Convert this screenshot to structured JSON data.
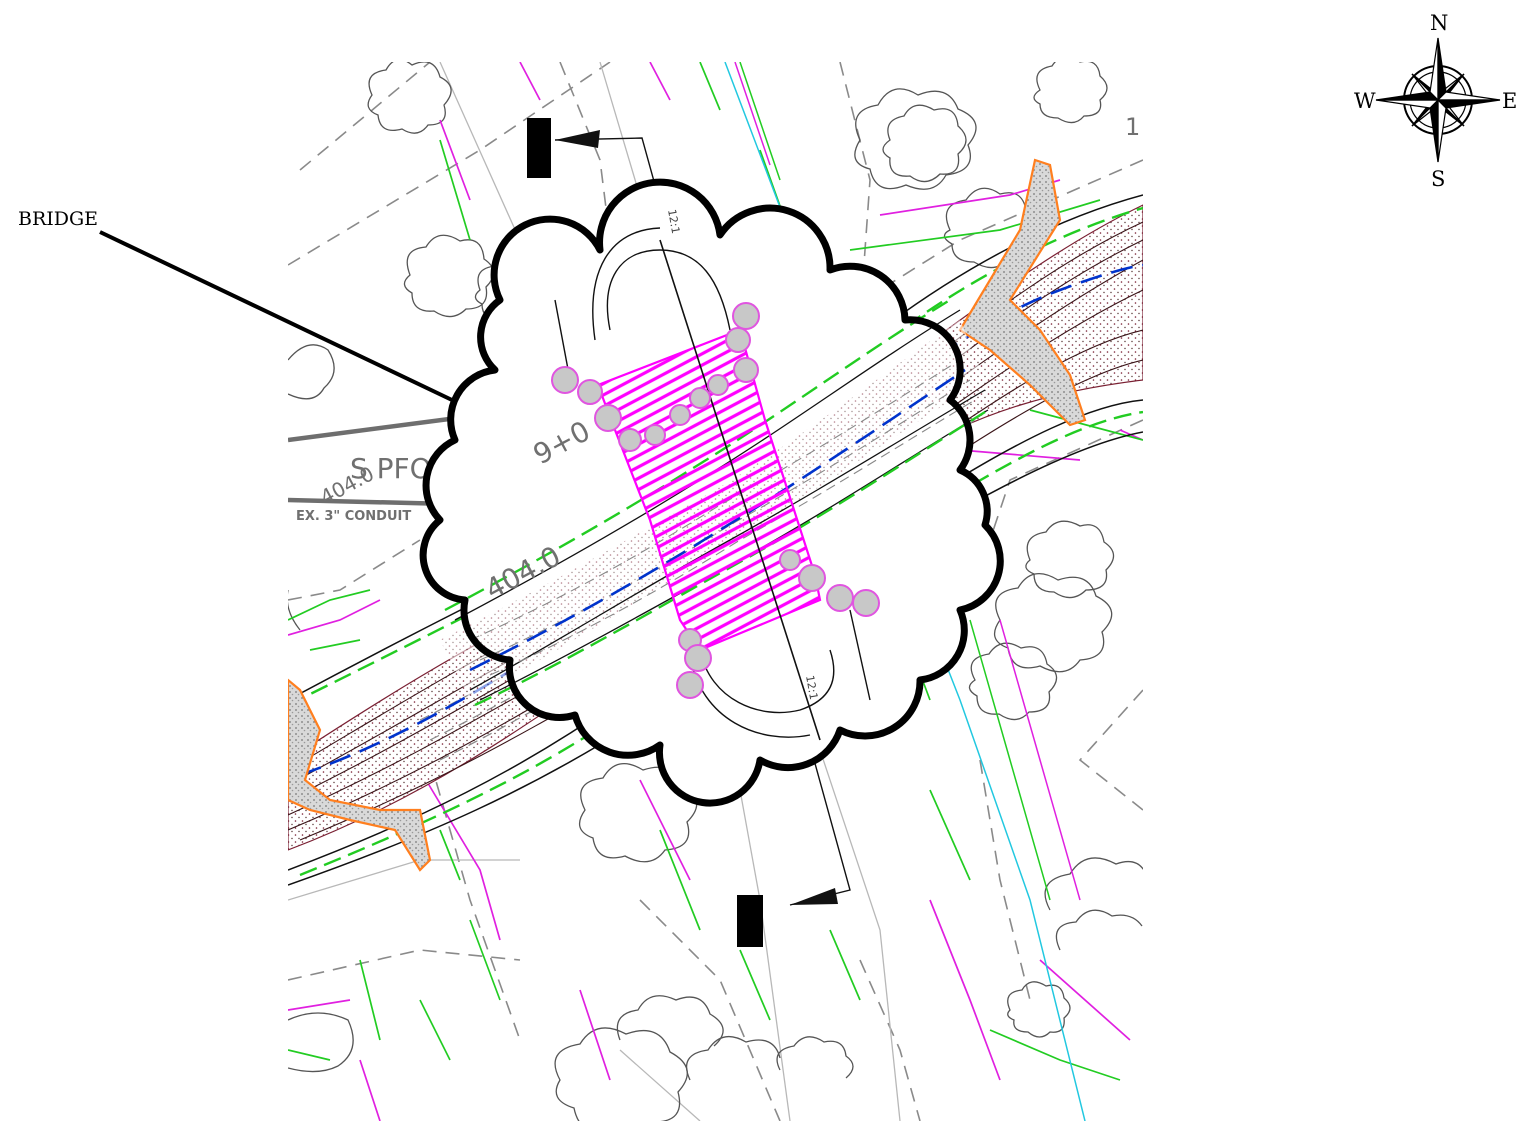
{
  "callout": {
    "label": "BRIDGE"
  },
  "compass": {
    "north": "N",
    "south": "S",
    "east": "E",
    "west": "W"
  },
  "plan_labels": {
    "station_top": "9+0",
    "station_bottom": "404.0",
    "wetland": "S PFO",
    "conduit": "EX. 3\" CONDUIT",
    "slope_top": "12:1",
    "slope_bottom": "12:1",
    "station_left": "404.0",
    "edge_mark": "1"
  },
  "colors": {
    "cloud_outline": "#000000",
    "bridge_hatch": "#ff00ff",
    "stream_centerline": "#0033cc",
    "green_line": "#22cc22",
    "orange_line": "#ff7f1f",
    "cyan_line": "#22c8e0",
    "magenta_line": "#e020e0",
    "pier_fill": "#c8c8c8",
    "pier_outline": "#e055e0",
    "gray_leader": "#6e6e6e"
  }
}
